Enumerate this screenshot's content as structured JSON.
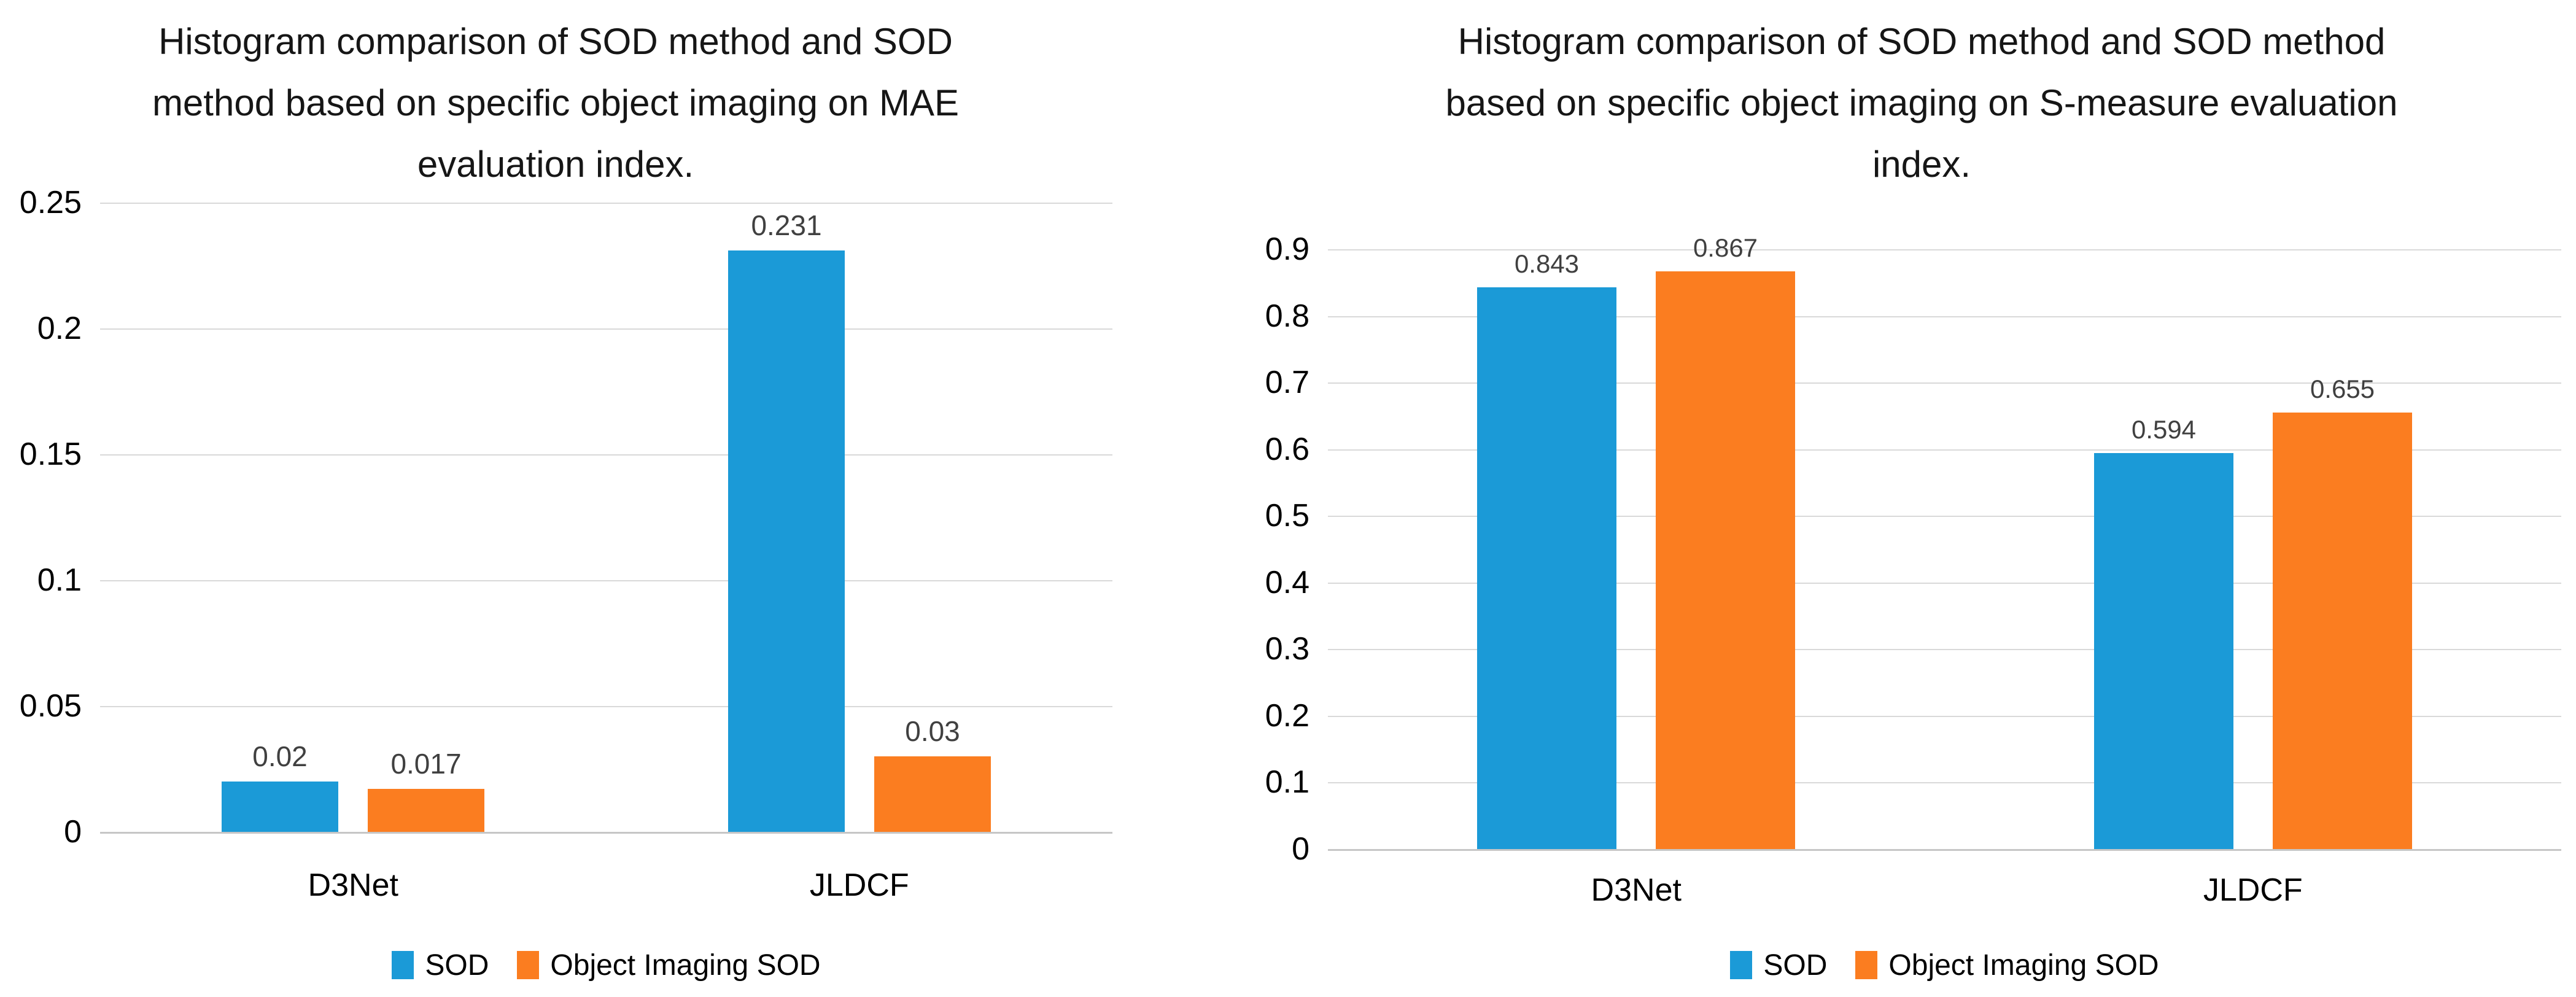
{
  "page": {
    "background": "#ffffff"
  },
  "colors": {
    "series_sod": "#1b9ad7",
    "series_object_imaging_sod": "#fb7d20",
    "gridline": "#d9d9d9",
    "axis_line": "#c6c6c6",
    "value_label_text": "#404040",
    "axis_text": "#000000",
    "title_text": "#161616"
  },
  "chart_data": [
    {
      "type": "bar",
      "title": "Histogram comparison of SOD method and SOD method based on specific object imaging on MAE evaluation index.",
      "title_lines": [
        "Histogram comparison of SOD method and SOD",
        "method based on specific object imaging on MAE",
        "evaluation index."
      ],
      "xlabel": "",
      "ylabel": "",
      "categories": [
        "D3Net",
        "JLDCF"
      ],
      "series": [
        {
          "name": "SOD",
          "color": "#1b9ad7",
          "values": [
            0.02,
            0.231
          ],
          "labels": [
            "0.02",
            "0.231"
          ]
        },
        {
          "name": "Object Imaging SOD",
          "color": "#fb7d20",
          "values": [
            0.017,
            0.03
          ],
          "labels": [
            "0.017",
            "0.03"
          ]
        }
      ],
      "ylim": [
        0,
        0.25
      ],
      "ytick_step": 0.05,
      "yticks": [
        "0.25",
        "0.2",
        "0.15",
        "0.1",
        "0.05",
        "0"
      ],
      "grid": true,
      "legend_position": "bottom"
    },
    {
      "type": "bar",
      "title": "Histogram comparison of SOD method and SOD method based on specific object imaging on S-measure evaluation index.",
      "title_lines": [
        "Histogram comparison of SOD method and SOD method",
        "based on specific object imaging on S-measure evaluation",
        "index."
      ],
      "xlabel": "",
      "ylabel": "",
      "categories": [
        "D3Net",
        "JLDCF"
      ],
      "series": [
        {
          "name": "SOD",
          "color": "#1b9ad7",
          "values": [
            0.843,
            0.594
          ],
          "labels": [
            "0.843",
            "0.594"
          ]
        },
        {
          "name": "Object Imaging SOD",
          "color": "#fb7d20",
          "values": [
            0.867,
            0.655
          ],
          "labels": [
            "0.867",
            "0.655"
          ]
        }
      ],
      "ylim": [
        0,
        0.9
      ],
      "ytick_step": 0.1,
      "yticks": [
        "0.9",
        "0.8",
        "0.7",
        "0.6",
        "0.5",
        "0.4",
        "0.3",
        "0.2",
        "0.1",
        "0"
      ],
      "grid": true,
      "legend_position": "bottom"
    }
  ]
}
